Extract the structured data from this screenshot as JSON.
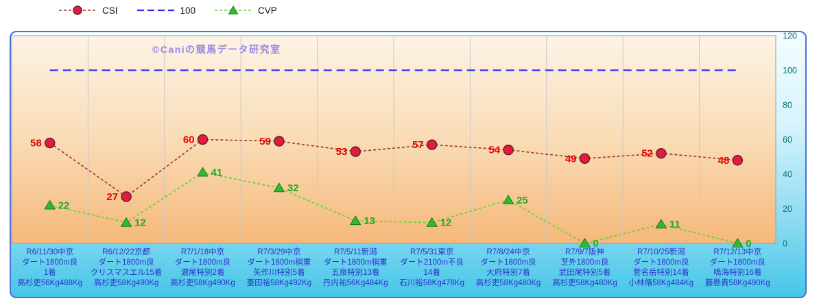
{
  "watermark": "©Caniの競馬データ研究室",
  "watermark_color": "#9b84e6",
  "chart_data": {
    "type": "line",
    "title": "",
    "legend_position": "top",
    "grid": "vertical",
    "ylim": [
      0,
      120
    ],
    "yticks": [
      0,
      20,
      40,
      60,
      80,
      100,
      120
    ],
    "categories": [
      [
        "R6/11/30中京",
        "ダート1800m良",
        "1着",
        "高杉吏56Kg488Kg"
      ],
      [
        "R6/12/22京都",
        "ダート1800m良",
        "クリスマスエル15着",
        "高杉吏58Kg490Kg"
      ],
      [
        "R7/1/18中京",
        "ダート1800m良",
        "濃尾特別2着",
        "高杉吏58Kg490Kg"
      ],
      [
        "R7/3/29中京",
        "ダート1800m稍重",
        "矢作川特別5着",
        "菱田裕58Kg492Kg"
      ],
      [
        "R7/5/11新潟",
        "ダート1800m稍重",
        "五泉特別13着",
        "丹内祐56Kg484Kg"
      ],
      [
        "R7/5/31東京",
        "ダート2100m不良",
        "14着",
        "石川裕58Kg478Kg"
      ],
      [
        "R7/8/24中京",
        "ダート1800m良",
        "大府特別7着",
        "高杉吏58Kg480Kg"
      ],
      [
        "R7/9/7阪神",
        "芝外1800m良",
        "武田尾特別5着",
        "高杉吏58Kg480Kg"
      ],
      [
        "R7/10/25新潟",
        "ダート1800m良",
        "菅名岳特別14着",
        "小林脩58Kg484Kg"
      ],
      [
        "R7/12/13中京",
        "ダート1800m良",
        "鳴海特別16着",
        "藤懸貴58Kg490Kg"
      ]
    ],
    "series": [
      {
        "name": "CSI",
        "type": "line",
        "marker": "circle",
        "label_side": "left",
        "line_color": "#a03425",
        "marker_fill": "#e8193c",
        "marker_stroke": "#5a2430",
        "label_color": "#e60000",
        "values": [
          58,
          27,
          60,
          59,
          53,
          57,
          54,
          49,
          52,
          48
        ]
      },
      {
        "name": "100",
        "type": "reference-line",
        "constant": 100,
        "line_color": "#2b2bf5"
      },
      {
        "name": "CVP",
        "type": "line",
        "marker": "triangle",
        "label_side": "right",
        "line_color": "#5cd631",
        "marker_fill": "#2ebc2e",
        "marker_stroke": "#157a15",
        "label_color": "#1faa28",
        "values": [
          22,
          12,
          41,
          32,
          13,
          12,
          25,
          0,
          11,
          0
        ]
      }
    ],
    "style": {
      "x_label_color": "#2a35c8",
      "y_tick_color": "#00786e",
      "grid_color": "#c9c9c9",
      "plot_border": "#9e9e9e",
      "plot_gradient_top": "#fdf3e6",
      "plot_gradient_mid": "#f9dcb6",
      "plot_gradient_bottom": "#f5b87a"
    }
  }
}
